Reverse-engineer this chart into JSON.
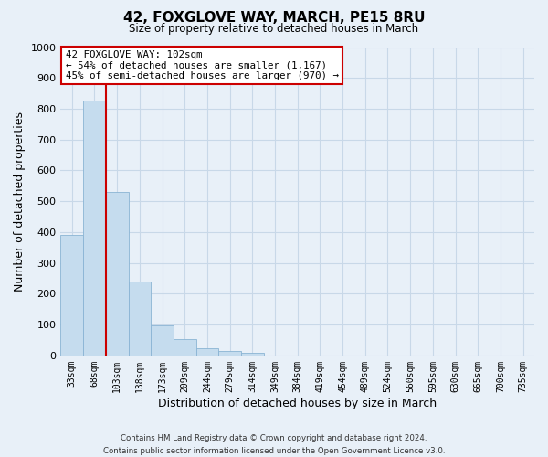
{
  "title": "42, FOXGLOVE WAY, MARCH, PE15 8RU",
  "subtitle": "Size of property relative to detached houses in March",
  "xlabel": "Distribution of detached houses by size in March",
  "ylabel": "Number of detached properties",
  "bar_labels": [
    "33sqm",
    "68sqm",
    "103sqm",
    "138sqm",
    "173sqm",
    "209sqm",
    "244sqm",
    "279sqm",
    "314sqm",
    "349sqm",
    "384sqm",
    "419sqm",
    "454sqm",
    "489sqm",
    "524sqm",
    "560sqm",
    "595sqm",
    "630sqm",
    "665sqm",
    "700sqm",
    "735sqm"
  ],
  "bar_values": [
    390,
    828,
    530,
    240,
    97,
    52,
    22,
    14,
    8,
    0,
    0,
    0,
    0,
    0,
    0,
    0,
    0,
    0,
    0,
    0,
    0
  ],
  "bar_color": "#c5dcee",
  "bar_edge_color": "#8ab4d4",
  "grid_color": "#c8d8e8",
  "background_color": "#e8f0f8",
  "property_line_index": 1.5,
  "property_label": "42 FOXGLOVE WAY: 102sqm",
  "annotation_line1": "← 54% of detached houses are smaller (1,167)",
  "annotation_line2": "45% of semi-detached houses are larger (970) →",
  "annotation_box_color": "#ffffff",
  "annotation_box_edge": "#cc0000",
  "property_line_color": "#cc0000",
  "ylim": [
    0,
    1000
  ],
  "yticks": [
    0,
    100,
    200,
    300,
    400,
    500,
    600,
    700,
    800,
    900,
    1000
  ],
  "footer_line1": "Contains HM Land Registry data © Crown copyright and database right 2024.",
  "footer_line2": "Contains public sector information licensed under the Open Government Licence v3.0."
}
